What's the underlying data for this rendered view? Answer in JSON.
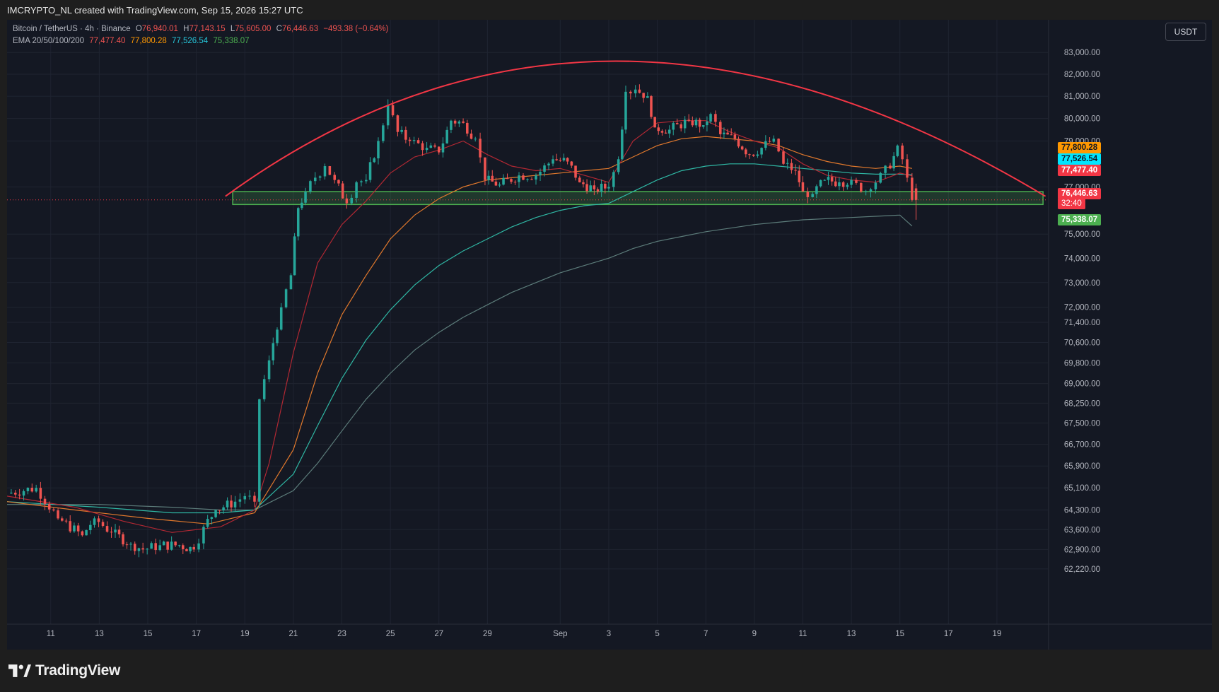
{
  "header": {
    "text": "IMCRYPTO_NL created with TradingView.com, Sep 15, 2026 15:27 UTC"
  },
  "legend": {
    "symbol": "Bitcoin / TetherUS · 4h · Binance",
    "open_label": "O",
    "open": "76,940.01",
    "high_label": "H",
    "high": "77,143.15",
    "low_label": "L",
    "low": "75,605.00",
    "close_label": "C",
    "close": "76,446.63",
    "change": "−493.38 (−0.64%)",
    "ema_label": "EMA 20/50/100/200",
    "ema20": "77,477.40",
    "ema50": "77,800.28",
    "ema100": "77,526.54",
    "ema200": "75,338.07"
  },
  "unit_badge": "USDT",
  "footer": {
    "logo_text": "TradingView"
  },
  "price_tags": {
    "ema50": "77,800.28",
    "ema100": "77,526.54",
    "ema20": "77,477.40",
    "last_price": "76,446.63",
    "countdown": "32:40",
    "ema200": "75,338.07"
  },
  "colors": {
    "up": "#26a69a",
    "down": "#ef5350",
    "ema20": "#b22833",
    "ema50": "#e0782c",
    "ema100": "#2fb7a4",
    "ema200": "#5c7c7a",
    "arc": "#f23645",
    "zone": "#4caf50",
    "last": "#f23645"
  },
  "chart_data": {
    "type": "candlestick",
    "symbol": "Bitcoin / TetherUS",
    "interval": "4h",
    "exchange": "Binance",
    "y_axis": {
      "scale": "log",
      "tick_labels": [
        "83,000.00",
        "82,000.00",
        "81,000.00",
        "80,000.00",
        "79,000.00",
        "77,000.00",
        "75,000.00",
        "74,000.00",
        "73,000.00",
        "72,000.00",
        "71,400.00",
        "70,600.00",
        "69,800.00",
        "69,000.00",
        "68,250.00",
        "67,500.00",
        "66,700.00",
        "65,900.00",
        "65,100.00",
        "64,300.00",
        "63,600.00",
        "62,900.00",
        "62,220.00"
      ],
      "range": [
        61900,
        83500
      ]
    },
    "x_axis": {
      "tick_labels": [
        "11",
        "13",
        "15",
        "17",
        "19",
        "21",
        "23",
        "25",
        "27",
        "29",
        "Sep",
        "3",
        "5",
        "7",
        "9",
        "11",
        "13",
        "15",
        "17",
        "19"
      ],
      "tick_days": [
        11,
        13,
        15,
        17,
        19,
        21,
        23,
        25,
        27,
        29,
        32,
        34,
        36,
        38,
        40,
        42,
        44,
        46,
        48,
        50
      ],
      "range_days": [
        9.2,
        52.1
      ],
      "day_reference": "August 1 = day 1"
    },
    "ohlc_anchors": [
      {
        "day": 9.2,
        "close": 64900
      },
      {
        "day": 10.4,
        "close": 65100
      },
      {
        "day": 11.3,
        "close": 64000
      },
      {
        "day": 12.3,
        "close": 63400
      },
      {
        "day": 12.8,
        "close": 64000
      },
      {
        "day": 13.5,
        "close": 63500
      },
      {
        "day": 14.3,
        "close": 63100
      },
      {
        "day": 14.8,
        "close": 62900
      },
      {
        "day": 15.5,
        "close": 63050
      },
      {
        "day": 16.3,
        "close": 63050
      },
      {
        "day": 16.9,
        "close": 62900
      },
      {
        "day": 17.3,
        "close": 63700
      },
      {
        "day": 17.8,
        "close": 64300
      },
      {
        "day": 18.6,
        "close": 64600
      },
      {
        "day": 19.0,
        "close": 64800
      },
      {
        "day": 19.4,
        "close": 64600
      },
      {
        "day": 19.6,
        "close": 68400
      },
      {
        "day": 20.0,
        "close": 69900
      },
      {
        "day": 20.5,
        "close": 72000
      },
      {
        "day": 20.9,
        "close": 73300
      },
      {
        "day": 21.2,
        "close": 76100
      },
      {
        "day": 21.5,
        "close": 76800
      },
      {
        "day": 21.9,
        "close": 77400
      },
      {
        "day": 22.3,
        "close": 77900
      },
      {
        "day": 22.7,
        "close": 77300
      },
      {
        "day": 23.2,
        "close": 76300
      },
      {
        "day": 23.6,
        "close": 77200
      },
      {
        "day": 24.0,
        "close": 77300
      },
      {
        "day": 24.5,
        "close": 79000
      },
      {
        "day": 24.9,
        "close": 80600
      },
      {
        "day": 25.3,
        "close": 79400
      },
      {
        "day": 25.8,
        "close": 79000
      },
      {
        "day": 26.5,
        "close": 78700
      },
      {
        "day": 27.0,
        "close": 78500
      },
      {
        "day": 27.5,
        "close": 79900
      },
      {
        "day": 28.0,
        "close": 79800
      },
      {
        "day": 28.5,
        "close": 79100
      },
      {
        "day": 28.9,
        "close": 77300
      },
      {
        "day": 29.5,
        "close": 77100
      },
      {
        "day": 30.3,
        "close": 77500
      },
      {
        "day": 31.0,
        "close": 77500
      },
      {
        "day": 31.7,
        "close": 78200
      },
      {
        "day": 32.3,
        "close": 78100
      },
      {
        "day": 32.8,
        "close": 77200
      },
      {
        "day": 33.4,
        "close": 76900
      },
      {
        "day": 34.0,
        "close": 77000
      },
      {
        "day": 34.4,
        "close": 78200
      },
      {
        "day": 34.7,
        "close": 81200
      },
      {
        "day": 35.1,
        "close": 81300
      },
      {
        "day": 35.6,
        "close": 81000
      },
      {
        "day": 35.9,
        "close": 79600
      },
      {
        "day": 36.5,
        "close": 79500
      },
      {
        "day": 37.3,
        "close": 79900
      },
      {
        "day": 37.9,
        "close": 79700
      },
      {
        "day": 38.2,
        "close": 80200
      },
      {
        "day": 38.6,
        "close": 79300
      },
      {
        "day": 39.2,
        "close": 79100
      },
      {
        "day": 39.8,
        "close": 78400
      },
      {
        "day": 40.3,
        "close": 78700
      },
      {
        "day": 40.8,
        "close": 79100
      },
      {
        "day": 41.2,
        "close": 78000
      },
      {
        "day": 41.7,
        "close": 77700
      },
      {
        "day": 42.0,
        "close": 76800
      },
      {
        "day": 42.4,
        "close": 76700
      },
      {
        "day": 42.9,
        "close": 77300
      },
      {
        "day": 43.5,
        "close": 77200
      },
      {
        "day": 44.0,
        "close": 77300
      },
      {
        "day": 44.4,
        "close": 76800
      },
      {
        "day": 44.8,
        "close": 76900
      },
      {
        "day": 45.2,
        "close": 77600
      },
      {
        "day": 45.6,
        "close": 77800
      },
      {
        "day": 45.9,
        "close": 78800
      },
      {
        "day": 46.1,
        "close": 78200
      },
      {
        "day": 46.3,
        "close": 77400
      },
      {
        "day": 46.5,
        "close": 76446.63
      }
    ],
    "last_candle": {
      "open": 76940.01,
      "high": 77143.15,
      "low": 75605.0,
      "close": 76446.63,
      "change": -493.38,
      "change_pct": -0.64
    },
    "ema_values_latest": {
      "ema20": 77477.4,
      "ema50": 77800.28,
      "ema100": 77526.54,
      "ema200": 75338.07
    },
    "ema_series": {
      "ema20": [
        [
          9.2,
          64800
        ],
        [
          12,
          64400
        ],
        [
          14,
          63900
        ],
        [
          16,
          63500
        ],
        [
          18,
          63700
        ],
        [
          19.4,
          64300
        ],
        [
          20,
          66000
        ],
        [
          21,
          70200
        ],
        [
          22,
          73800
        ],
        [
          23,
          75400
        ],
        [
          24,
          76400
        ],
        [
          25,
          77600
        ],
        [
          26,
          78300
        ],
        [
          27,
          78600
        ],
        [
          28,
          79000
        ],
        [
          29,
          78400
        ],
        [
          30,
          77900
        ],
        [
          31,
          77700
        ],
        [
          32,
          77800
        ],
        [
          33,
          77500
        ],
        [
          34,
          77200
        ],
        [
          35,
          79000
        ],
        [
          36,
          79800
        ],
        [
          37,
          79900
        ],
        [
          38,
          79900
        ],
        [
          39,
          79400
        ],
        [
          40,
          79000
        ],
        [
          41,
          78700
        ],
        [
          42,
          78000
        ],
        [
          43,
          77500
        ],
        [
          44,
          77300
        ],
        [
          45,
          77200
        ],
        [
          46,
          77600
        ],
        [
          46.5,
          77477.4
        ]
      ],
      "ema50": [
        [
          9.2,
          64600
        ],
        [
          12,
          64300
        ],
        [
          15,
          64000
        ],
        [
          17.5,
          63800
        ],
        [
          19.4,
          64200
        ],
        [
          21,
          66500
        ],
        [
          22,
          69400
        ],
        [
          23,
          71700
        ],
        [
          24,
          73300
        ],
        [
          25,
          74800
        ],
        [
          26,
          75800
        ],
        [
          27,
          76500
        ],
        [
          28,
          77000
        ],
        [
          29,
          77300
        ],
        [
          30,
          77400
        ],
        [
          31,
          77500
        ],
        [
          32,
          77600
        ],
        [
          33,
          77700
        ],
        [
          34,
          77800
        ],
        [
          35,
          78300
        ],
        [
          36,
          78800
        ],
        [
          37,
          79100
        ],
        [
          38,
          79200
        ],
        [
          39,
          79100
        ],
        [
          40,
          79000
        ],
        [
          41,
          78800
        ],
        [
          42,
          78400
        ],
        [
          43,
          78100
        ],
        [
          44,
          77900
        ],
        [
          45,
          77800
        ],
        [
          46,
          77900
        ],
        [
          46.5,
          77800.28
        ]
      ],
      "ema100": [
        [
          9.2,
          64600
        ],
        [
          13,
          64400
        ],
        [
          16,
          64200
        ],
        [
          18,
          64200
        ],
        [
          19.4,
          64300
        ],
        [
          21,
          65600
        ],
        [
          22,
          67400
        ],
        [
          23,
          69200
        ],
        [
          24,
          70700
        ],
        [
          25,
          71900
        ],
        [
          26,
          72900
        ],
        [
          27,
          73700
        ],
        [
          28,
          74300
        ],
        [
          29,
          74800
        ],
        [
          30,
          75300
        ],
        [
          31,
          75700
        ],
        [
          32,
          76000
        ],
        [
          33,
          76200
        ],
        [
          34,
          76300
        ],
        [
          35,
          76800
        ],
        [
          36,
          77300
        ],
        [
          37,
          77700
        ],
        [
          38,
          77900
        ],
        [
          39,
          78000
        ],
        [
          40,
          78000
        ],
        [
          41,
          77900
        ],
        [
          42,
          77800
        ],
        [
          43,
          77700
        ],
        [
          44,
          77600
        ],
        [
          45,
          77550
        ],
        [
          46,
          77550
        ],
        [
          46.5,
          77526.54
        ]
      ],
      "ema200": [
        [
          9.2,
          64500
        ],
        [
          13,
          64500
        ],
        [
          16,
          64400
        ],
        [
          18,
          64300
        ],
        [
          19.4,
          64300
        ],
        [
          21,
          65000
        ],
        [
          22,
          66000
        ],
        [
          23,
          67200
        ],
        [
          24,
          68400
        ],
        [
          25,
          69400
        ],
        [
          26,
          70300
        ],
        [
          27,
          71000
        ],
        [
          28,
          71600
        ],
        [
          29,
          72100
        ],
        [
          30,
          72600
        ],
        [
          31,
          73000
        ],
        [
          32,
          73400
        ],
        [
          33,
          73700
        ],
        [
          34,
          74000
        ],
        [
          35,
          74400
        ],
        [
          36,
          74700
        ],
        [
          37,
          74900
        ],
        [
          38,
          75100
        ],
        [
          39,
          75250
        ],
        [
          40,
          75400
        ],
        [
          41,
          75500
        ],
        [
          42,
          75600
        ],
        [
          43,
          75650
        ],
        [
          44,
          75700
        ],
        [
          45,
          75750
        ],
        [
          46,
          75800
        ],
        [
          46.5,
          75338.07
        ]
      ]
    },
    "annotations": {
      "support_zone": {
        "price_top": 76800,
        "price_bottom": 76250,
        "day_start": 18.5,
        "day_end": 51.9
      },
      "arc": {
        "day_start": 18.2,
        "day_peak": 33.5,
        "day_end": 52.0,
        "price_ends": 76600,
        "price_peak": 82600
      }
    },
    "last_price_line": 76446.63,
    "grid": true
  }
}
